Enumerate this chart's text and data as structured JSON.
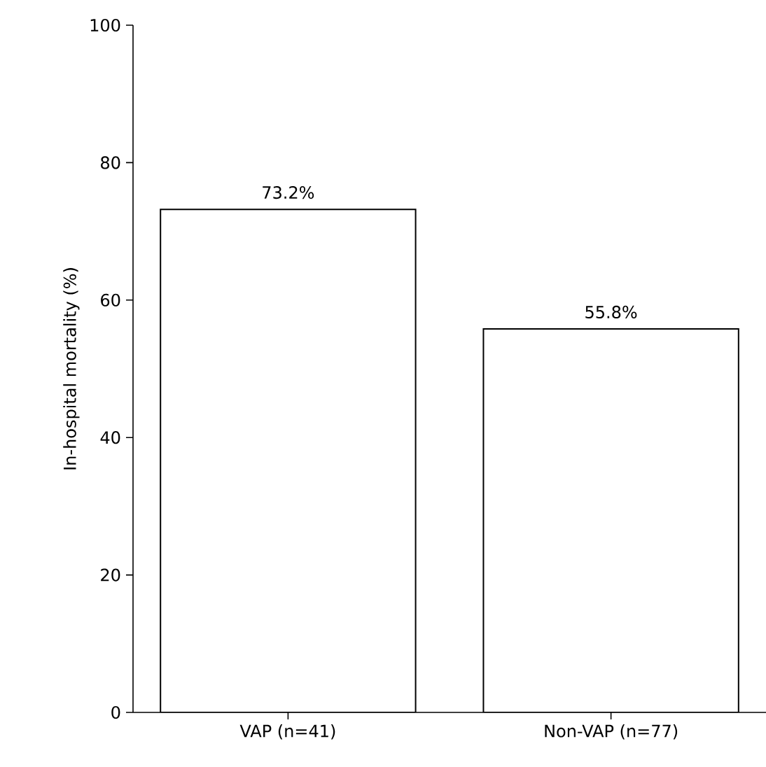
{
  "chart_data": {
    "type": "bar",
    "ylabel": "In-hospital mortality (%)",
    "categories": [
      "VAP (n=41)",
      "Non-VAP (n=77)"
    ],
    "values": [
      73.2,
      55.8
    ],
    "value_labels": [
      "73.2%",
      "55.8%"
    ],
    "color": "#ffffff",
    "ylim": [
      0,
      100
    ],
    "yticks": [
      0,
      20,
      40,
      60,
      80,
      100
    ]
  }
}
